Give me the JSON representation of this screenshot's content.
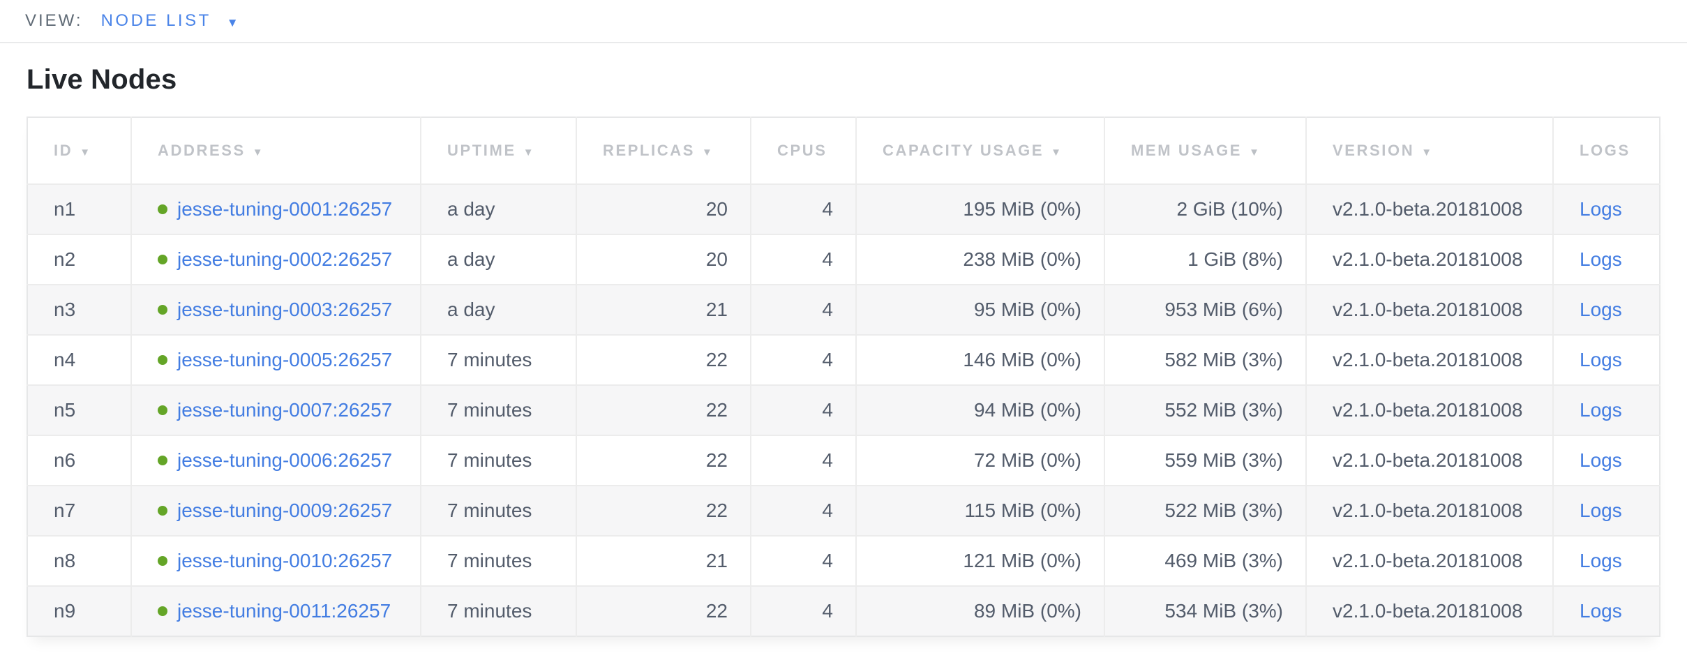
{
  "view_bar": {
    "label": "VIEW:",
    "selected": "NODE LIST"
  },
  "icons": {
    "chevron_down": "▼",
    "sort_down": "▼",
    "node_status": "live-green-dot"
  },
  "page": {
    "title": "Live Nodes"
  },
  "table": {
    "columns": [
      {
        "key": "id",
        "label": "ID",
        "sortable": true
      },
      {
        "key": "address",
        "label": "ADDRESS",
        "sortable": true
      },
      {
        "key": "uptime",
        "label": "UPTIME",
        "sortable": true
      },
      {
        "key": "replicas",
        "label": "REPLICAS",
        "sortable": true
      },
      {
        "key": "cpus",
        "label": "CPUS",
        "sortable": false
      },
      {
        "key": "capacity",
        "label": "CAPACITY USAGE",
        "sortable": true
      },
      {
        "key": "mem",
        "label": "MEM USAGE",
        "sortable": true
      },
      {
        "key": "version",
        "label": "VERSION",
        "sortable": true
      },
      {
        "key": "logs",
        "label": "LOGS",
        "sortable": false
      }
    ],
    "rows": [
      {
        "id": "n1",
        "address": "jesse-tuning-0001:26257",
        "uptime": "a day",
        "replicas": "20",
        "cpus": "4",
        "capacity": "195 MiB (0%)",
        "mem": "2 GiB (10%)",
        "version": "v2.1.0-beta.20181008",
        "logs": "Logs"
      },
      {
        "id": "n2",
        "address": "jesse-tuning-0002:26257",
        "uptime": "a day",
        "replicas": "20",
        "cpus": "4",
        "capacity": "238 MiB (0%)",
        "mem": "1 GiB (8%)",
        "version": "v2.1.0-beta.20181008",
        "logs": "Logs"
      },
      {
        "id": "n3",
        "address": "jesse-tuning-0003:26257",
        "uptime": "a day",
        "replicas": "21",
        "cpus": "4",
        "capacity": "95 MiB (0%)",
        "mem": "953 MiB (6%)",
        "version": "v2.1.0-beta.20181008",
        "logs": "Logs"
      },
      {
        "id": "n4",
        "address": "jesse-tuning-0005:26257",
        "uptime": "7 minutes",
        "replicas": "22",
        "cpus": "4",
        "capacity": "146 MiB (0%)",
        "mem": "582 MiB (3%)",
        "version": "v2.1.0-beta.20181008",
        "logs": "Logs"
      },
      {
        "id": "n5",
        "address": "jesse-tuning-0007:26257",
        "uptime": "7 minutes",
        "replicas": "22",
        "cpus": "4",
        "capacity": "94 MiB (0%)",
        "mem": "552 MiB (3%)",
        "version": "v2.1.0-beta.20181008",
        "logs": "Logs"
      },
      {
        "id": "n6",
        "address": "jesse-tuning-0006:26257",
        "uptime": "7 minutes",
        "replicas": "22",
        "cpus": "4",
        "capacity": "72 MiB (0%)",
        "mem": "559 MiB (3%)",
        "version": "v2.1.0-beta.20181008",
        "logs": "Logs"
      },
      {
        "id": "n7",
        "address": "jesse-tuning-0009:26257",
        "uptime": "7 minutes",
        "replicas": "22",
        "cpus": "4",
        "capacity": "115 MiB (0%)",
        "mem": "522 MiB (3%)",
        "version": "v2.1.0-beta.20181008",
        "logs": "Logs"
      },
      {
        "id": "n8",
        "address": "jesse-tuning-0010:26257",
        "uptime": "7 minutes",
        "replicas": "21",
        "cpus": "4",
        "capacity": "121 MiB (0%)",
        "mem": "469 MiB (3%)",
        "version": "v2.1.0-beta.20181008",
        "logs": "Logs"
      },
      {
        "id": "n9",
        "address": "jesse-tuning-0011:26257",
        "uptime": "7 minutes",
        "replicas": "22",
        "cpus": "4",
        "capacity": "89 MiB (0%)",
        "mem": "534 MiB (3%)",
        "version": "v2.1.0-beta.20181008",
        "logs": "Logs"
      }
    ]
  },
  "colors": {
    "link_blue": "#437de2",
    "topbar_blue": "#4a84e8",
    "header_text": "#c0c3c8",
    "cell_text": "#535c6b",
    "title_text": "#22262b",
    "topbar_label": "#5f6a75",
    "row_stripe": "#f6f6f7",
    "border": "#ececec",
    "status_green": "#64a527"
  }
}
